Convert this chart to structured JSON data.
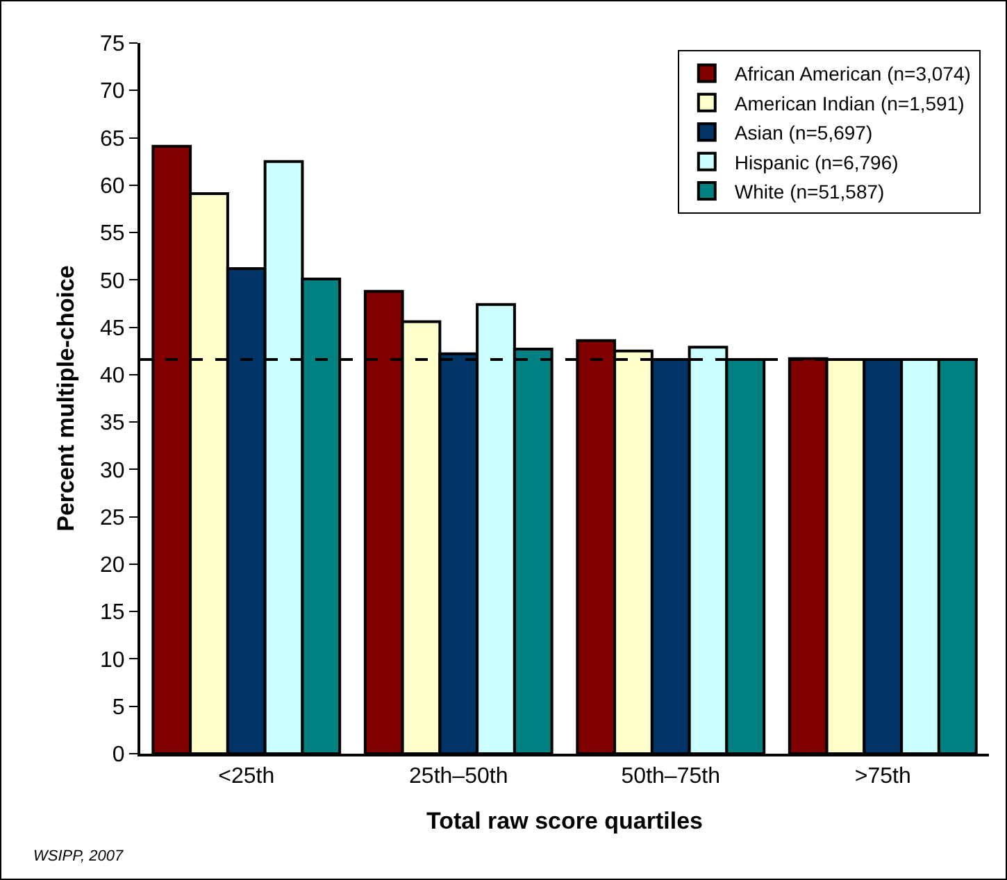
{
  "chart_data": {
    "type": "bar",
    "xlabel": "Total raw score quartiles",
    "ylabel": "Percent multiple-choice",
    "categories": [
      "<25th",
      "25th–50th",
      "50th–75th",
      ">75th"
    ],
    "series": [
      {
        "name": "African American (n=3,074)",
        "color": "#800000",
        "values": [
          64.1,
          48.8,
          43.6,
          41.7
        ]
      },
      {
        "name": "American Indian (n=1,591)",
        "color": "#ffffcc",
        "values": [
          59.1,
          45.6,
          42.5,
          41.6
        ]
      },
      {
        "name": "Asian (n=5,697)",
        "color": "#003366",
        "values": [
          51.2,
          42.2,
          41.6,
          41.6
        ]
      },
      {
        "name": "Hispanic (n=6,796)",
        "color": "#ccffff",
        "values": [
          62.5,
          47.4,
          42.9,
          41.6
        ]
      },
      {
        "name": "White (n=51,587)",
        "color": "#008080",
        "values": [
          50.1,
          42.7,
          41.6,
          41.6
        ]
      }
    ],
    "ylim": [
      0,
      75
    ],
    "yticks": [
      0,
      5,
      10,
      15,
      20,
      25,
      30,
      35,
      40,
      45,
      50,
      55,
      60,
      65,
      70,
      75
    ],
    "grid": false,
    "legend": "top right",
    "ref_lines": [
      {
        "axis": "y",
        "value": 41.6,
        "line_style": "dashed",
        "color": "#000000"
      }
    ],
    "annotations": [
      "WSIPP, 2007"
    ]
  }
}
